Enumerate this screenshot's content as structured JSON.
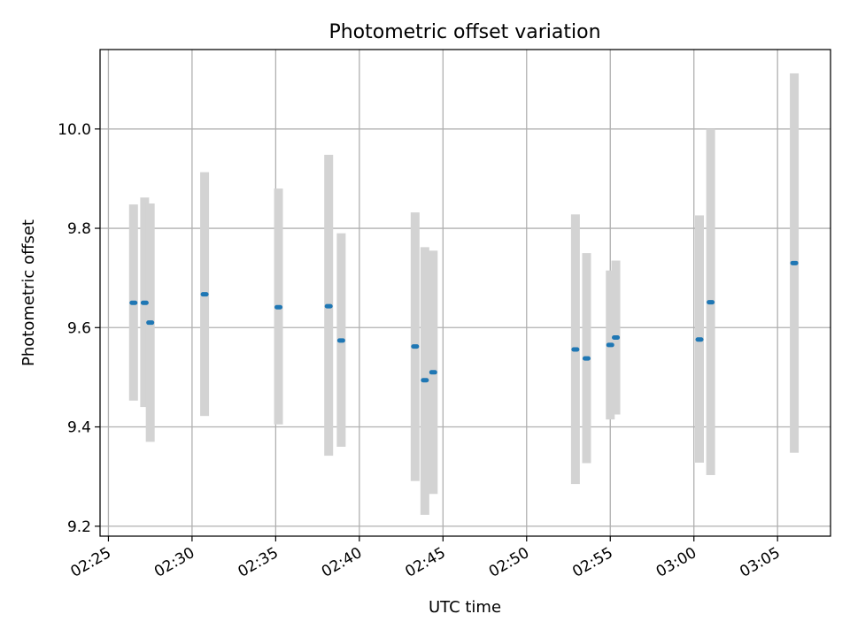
{
  "chart_data": {
    "type": "scatter",
    "title": "Photometric offset variation",
    "xlabel": "UTC time",
    "ylabel": "Photometric offset",
    "x_unit": "minutes since 02:25 UTC",
    "xlim": [
      "02:24:30",
      "03:08:10"
    ],
    "ylim": [
      9.18,
      10.16
    ],
    "x_ticks": [
      "02:25",
      "02:30",
      "02:35",
      "02:40",
      "02:45",
      "02:50",
      "02:55",
      "03:00",
      "03:05"
    ],
    "y_ticks": [
      "9.2",
      "9.4",
      "9.6",
      "9.8",
      "10.0"
    ],
    "grid": true,
    "colors": {
      "points": "#1f77b4",
      "error_bars": "#d3d3d3",
      "grid": "#b0b0b0"
    },
    "points": [
      {
        "t": "02:26:30",
        "y": 9.65,
        "err_lo": 9.453,
        "err_hi": 9.848
      },
      {
        "t": "02:27:10",
        "y": 9.65,
        "err_lo": 9.44,
        "err_hi": 9.862
      },
      {
        "t": "02:27:30",
        "y": 9.61,
        "err_lo": 9.37,
        "err_hi": 9.85
      },
      {
        "t": "02:30:45",
        "y": 9.667,
        "err_lo": 9.422,
        "err_hi": 9.913
      },
      {
        "t": "02:35:10",
        "y": 9.641,
        "err_lo": 9.405,
        "err_hi": 9.88
      },
      {
        "t": "02:38:10",
        "y": 9.643,
        "err_lo": 9.342,
        "err_hi": 9.948
      },
      {
        "t": "02:38:55",
        "y": 9.574,
        "err_lo": 9.36,
        "err_hi": 9.79
      },
      {
        "t": "02:43:20",
        "y": 9.562,
        "err_lo": 9.291,
        "err_hi": 9.832
      },
      {
        "t": "02:43:55",
        "y": 9.494,
        "err_lo": 9.223,
        "err_hi": 9.762
      },
      {
        "t": "02:44:25",
        "y": 9.51,
        "err_lo": 9.265,
        "err_hi": 9.755
      },
      {
        "t": "02:52:55",
        "y": 9.556,
        "err_lo": 9.285,
        "err_hi": 9.828
      },
      {
        "t": "02:53:35",
        "y": 9.538,
        "err_lo": 9.327,
        "err_hi": 9.75
      },
      {
        "t": "02:55:00",
        "y": 9.565,
        "err_lo": 9.415,
        "err_hi": 9.715
      },
      {
        "t": "02:55:20",
        "y": 9.58,
        "err_lo": 9.425,
        "err_hi": 9.735
      },
      {
        "t": "03:00:20",
        "y": 9.576,
        "err_lo": 9.328,
        "err_hi": 9.826
      },
      {
        "t": "03:01:00",
        "y": 9.651,
        "err_lo": 9.303,
        "err_hi": 10.0
      },
      {
        "t": "03:06:00",
        "y": 9.73,
        "err_lo": 9.348,
        "err_hi": 10.112
      }
    ]
  }
}
